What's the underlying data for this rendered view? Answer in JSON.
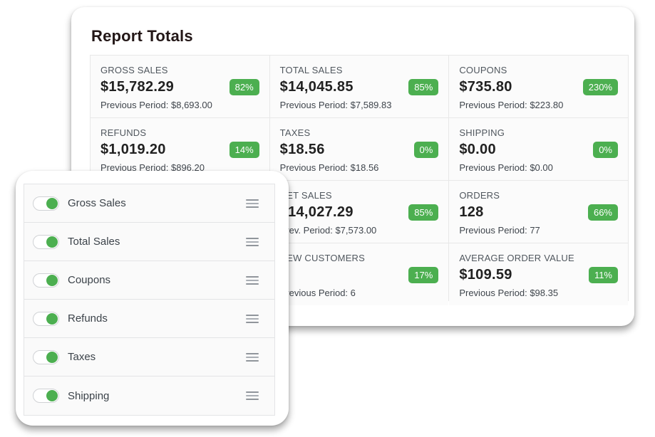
{
  "colors": {
    "accent_green": "#4caf50",
    "badge_text": "#ffffff",
    "title_text": "#231717"
  },
  "report": {
    "title": "Report Totals",
    "tiles": [
      {
        "label": "GROSS SALES",
        "value": "$15,782.29",
        "change": "82%",
        "previous": "Previous Period: $8,693.00"
      },
      {
        "label": "TOTAL SALES",
        "value": "$14,045.85",
        "change": "85%",
        "previous": "Previous Period: $7,589.83"
      },
      {
        "label": "COUPONS",
        "value": "$735.80",
        "change": "230%",
        "previous": "Previous Period: $223.80"
      },
      {
        "label": "REFUNDS",
        "value": "$1,019.20",
        "change": "14%",
        "previous": "Previous Period: $896.20"
      },
      {
        "label": "TAXES",
        "value": "$18.56",
        "change": "0%",
        "previous": "Previous Period: $18.56"
      },
      {
        "label": "SHIPPING",
        "value": "$0.00",
        "change": "0%",
        "previous": "Previous Period: $0.00"
      },
      {
        "label": "",
        "value": "",
        "change": "",
        "previous": ""
      },
      {
        "label": "NET SALES",
        "value": "$14,027.29",
        "change": "85%",
        "previous": "Prev. Period: $7,573.00"
      },
      {
        "label": "ORDERS",
        "value": "128",
        "change": "66%",
        "previous": "Previous Period: 77"
      },
      {
        "label": "",
        "value": "",
        "change": "",
        "previous": ""
      },
      {
        "label": "NEW CUSTOMERS",
        "value": "",
        "change": "17%",
        "previous": "Previous Period: 6"
      },
      {
        "label": "AVERAGE ORDER VALUE",
        "value": "$109.59",
        "change": "11%",
        "previous": "Previous Period: $98.35"
      }
    ]
  },
  "toggles": {
    "items": [
      {
        "label": "Gross Sales",
        "on": true
      },
      {
        "label": "Total Sales",
        "on": true
      },
      {
        "label": "Coupons",
        "on": true
      },
      {
        "label": "Refunds",
        "on": true
      },
      {
        "label": "Taxes",
        "on": true
      },
      {
        "label": "Shipping",
        "on": true
      }
    ]
  }
}
